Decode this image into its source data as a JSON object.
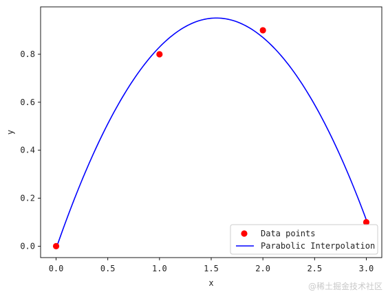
{
  "chart_data": {
    "type": "scatter",
    "title": "",
    "xlabel": "x",
    "ylabel": "y",
    "xlim": [
      -0.15,
      3.15
    ],
    "ylim": [
      -0.0475,
      0.9975
    ],
    "xticks": [
      0.0,
      0.5,
      1.0,
      1.5,
      2.0,
      2.5,
      3.0
    ],
    "xtick_labels": [
      "0.0",
      "0.5",
      "1.0",
      "1.5",
      "2.0",
      "2.5",
      "3.0"
    ],
    "yticks": [
      0.0,
      0.2,
      0.4,
      0.6,
      0.8
    ],
    "ytick_labels": [
      "0.0",
      "0.2",
      "0.4",
      "0.6",
      "0.8"
    ],
    "grid": false,
    "legend_position": "lower-right",
    "series": [
      {
        "name": "Data points",
        "kind": "scatter",
        "color": "#ff0000",
        "points": [
          {
            "x": 0,
            "y": 0.0
          },
          {
            "x": 1,
            "y": 0.8
          },
          {
            "x": 2,
            "y": 0.9
          },
          {
            "x": 3,
            "y": 0.1
          }
        ]
      },
      {
        "name": "Parabolic Interpolation",
        "kind": "line",
        "color": "#0000ff",
        "x_range": [
          0,
          3
        ],
        "curve_points": [
          {
            "x": 0.0,
            "y": 0.0
          },
          {
            "x": 0.5,
            "y": 0.46
          },
          {
            "x": 1.0,
            "y": 0.8
          },
          {
            "x": 1.5,
            "y": 0.95
          },
          {
            "x": 2.0,
            "y": 0.88
          },
          {
            "x": 2.5,
            "y": 0.58
          },
          {
            "x": 3.0,
            "y": 0.1
          }
        ]
      }
    ]
  },
  "watermark": {
    "text": "@稀土掘金技术社区"
  }
}
